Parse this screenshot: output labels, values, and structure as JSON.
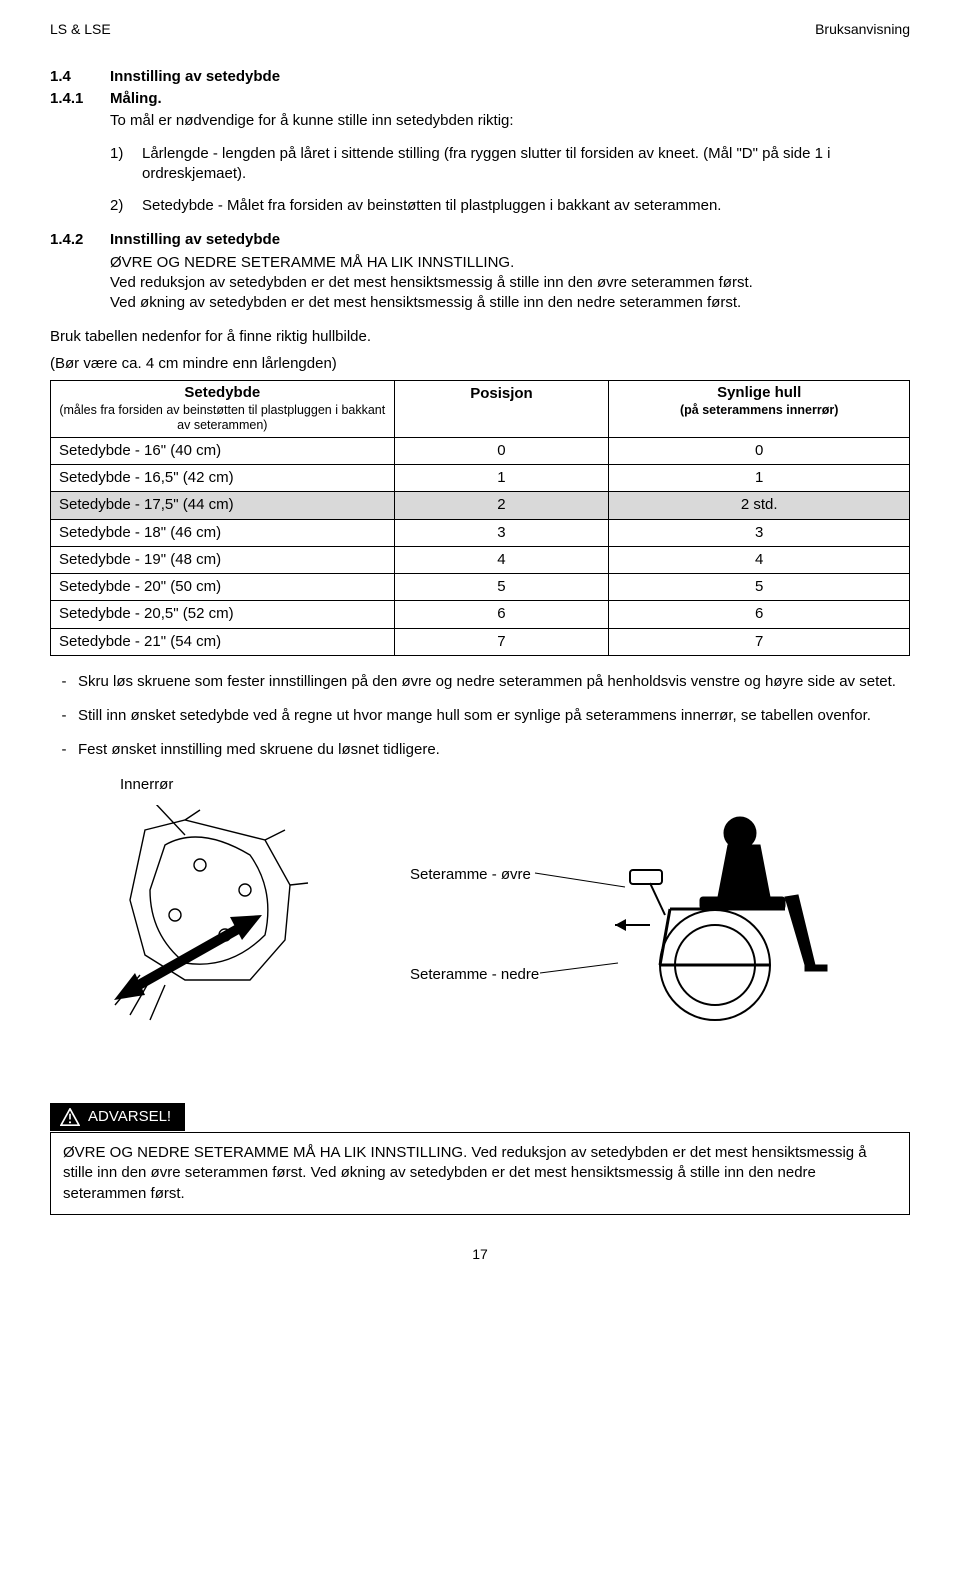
{
  "header": {
    "left": "LS & LSE",
    "right": "Bruksanvisning"
  },
  "s14": {
    "num": "1.4",
    "title": "Innstilling av setedybde",
    "sub_num": "1.4.1",
    "sub_title": "Måling.",
    "intro": "To mål er nødvendige for å kunne stille inn setedybden riktig:",
    "item1_marker": "1)",
    "item1_text": "Lårlengde - lengden på låret i sittende stilling (fra ryggen slutter til forsiden av kneet. (Mål \"D\" på side 1 i ordreskjemaet).",
    "item2_marker": "2)",
    "item2_text": "Setedybde - Målet fra forsiden av beinstøtten til plastpluggen i bakkant av seterammen."
  },
  "s142": {
    "num": "1.4.2",
    "title": "Innstilling av setedybde",
    "line1": "ØVRE OG NEDRE SETERAMME MÅ HA LIK INNSTILLING.",
    "line2": "Ved reduksjon av setedybden er det mest hensiktsmessig å stille inn den øvre seterammen først.",
    "line3": "Ved økning av setedybden er det mest hensiktsmessig å stille inn den nedre seterammen først."
  },
  "table_intro": {
    "l1": "Bruk tabellen nedenfor for å finne riktig hullbilde.",
    "l2": "(Bør være ca. 4 cm mindre enn lårlengden)"
  },
  "table": {
    "h1": "Setedybde",
    "h1_sub": "(måles fra forsiden av beinstøtten til plastpluggen i bakkant av seterammen)",
    "h2": "Posisjon",
    "h3": "Synlige hull",
    "h3_sub": "(på seterammens innerrør)",
    "rows": [
      {
        "c1": "Setedybde - 16\" (40 cm)",
        "c2": "0",
        "c3": "0",
        "shade": false
      },
      {
        "c1": "Setedybde - 16,5\" (42 cm)",
        "c2": "1",
        "c3": "1",
        "shade": false
      },
      {
        "c1": "Setedybde - 17,5\" (44 cm)",
        "c2": "2",
        "c3": "2 std.",
        "shade": true
      },
      {
        "c1": "Setedybde - 18\" (46 cm)",
        "c2": "3",
        "c3": "3",
        "shade": false
      },
      {
        "c1": "Setedybde - 19\" (48 cm)",
        "c2": "4",
        "c3": "4",
        "shade": false
      },
      {
        "c1": "Setedybde - 20\" (50 cm)",
        "c2": "5",
        "c3": "5",
        "shade": false
      },
      {
        "c1": "Setedybde - 20,5\" (52 cm)",
        "c2": "6",
        "c3": "6",
        "shade": false
      },
      {
        "c1": "Setedybde - 21\" (54 cm)",
        "c2": "7",
        "c3": "7",
        "shade": false
      }
    ]
  },
  "dashes": {
    "d1": "Skru løs skruene som fester innstillingen på den øvre og nedre seterammen på henholdsvis venstre og høyre side av setet.",
    "d2": "Still inn ønsket setedybde ved å regne ut hvor mange hull som er synlige på seterammens innerrør, se tabellen ovenfor.",
    "d3": "Fest ønsket innstilling med skruene du løsnet tidligere."
  },
  "figure": {
    "innerror": "Innerrør",
    "upper": "Seteramme - øvre",
    "lower": "Seteramme - nedre"
  },
  "warning": {
    "label": "ADVARSEL!",
    "text": "ØVRE OG NEDRE SETERAMME MÅ HA LIK INNSTILLING. Ved reduksjon av setedybden er det mest hensiktsmessig å stille inn den øvre seterammen først. Ved økning av setedybden er det mest hensiktsmessig å stille inn den nedre seterammen først."
  },
  "page_num": "17"
}
